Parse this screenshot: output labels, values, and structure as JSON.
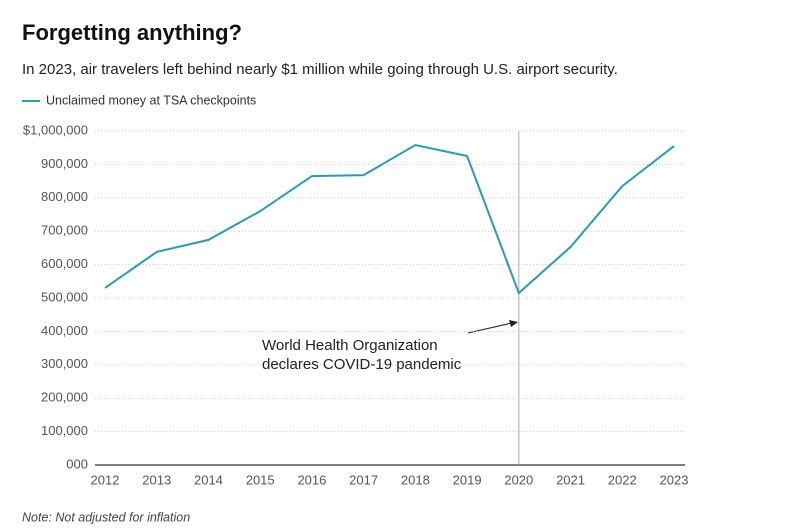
{
  "chart_data": {
    "type": "line",
    "title": "Forgetting anything?",
    "subtitle": "In 2023, air travelers left behind nearly $1 million while going through U.S. airport security.",
    "note": "Note: Not adjusted for inflation",
    "x": [
      2012,
      2013,
      2014,
      2015,
      2016,
      2017,
      2018,
      2019,
      2020,
      2021,
      2022,
      2023
    ],
    "series": [
      {
        "name": "Unclaimed money at TSA checkpoints",
        "color": "#2a9bb5",
        "values": [
          530000,
          638000,
          674000,
          760000,
          865000,
          868000,
          958000,
          925000,
          515000,
          653000,
          835000,
          955000
        ]
      }
    ],
    "xlim": [
      2012,
      2023
    ],
    "xticks": [
      2012,
      2013,
      2014,
      2015,
      2016,
      2017,
      2018,
      2019,
      2020,
      2021,
      2022,
      2023
    ],
    "ylim": [
      0,
      1000000
    ],
    "yticks": [
      {
        "value": 0,
        "label": "000"
      },
      {
        "value": 100000,
        "label": "100,000"
      },
      {
        "value": 200000,
        "label": "200,000"
      },
      {
        "value": 300000,
        "label": "300,000"
      },
      {
        "value": 400000,
        "label": "400,000"
      },
      {
        "value": 500000,
        "label": "500,000"
      },
      {
        "value": 600000,
        "label": "600,000"
      },
      {
        "value": 700000,
        "label": "700,000"
      },
      {
        "value": 800000,
        "label": "800,000"
      },
      {
        "value": 900000,
        "label": "900,000"
      },
      {
        "value": 1000000,
        "label": "$1,000,000"
      }
    ],
    "grid": true,
    "legend": "top-left",
    "annotation": {
      "x": 2020,
      "lines": [
        "World Health Organization",
        "declares COVID-19 pandemic"
      ]
    }
  }
}
